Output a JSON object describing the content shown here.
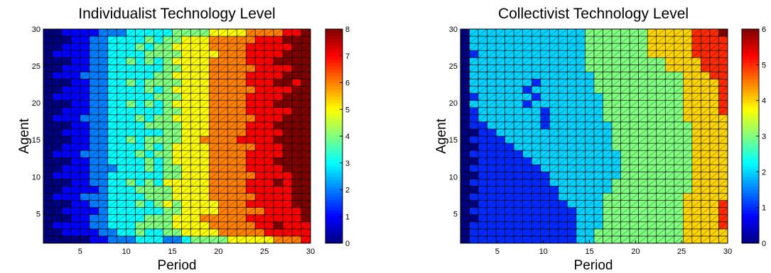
{
  "chart_data": [
    {
      "type": "heatmap",
      "title": "Individualist Technology Level",
      "xlabel": "Period",
      "ylabel": "Agent",
      "xlim": [
        1,
        30
      ],
      "ylim": [
        1,
        30
      ],
      "xticks": [
        5,
        10,
        15,
        20,
        25,
        30
      ],
      "yticks": [
        5,
        10,
        15,
        20,
        25,
        30
      ],
      "colorbar": {
        "min": 0,
        "max": 8,
        "ticks": [
          0,
          1,
          2,
          3,
          4,
          5,
          6,
          7,
          8
        ],
        "colormap": "jet"
      },
      "rows": [
        "00000112223332234444555556667",
        "00111122334334455556666677777",
        "01111223334444555566666778777",
        "00011223333444555666667777778",
        "00111123333334455556666677778",
        "00011223334345455556667777788",
        "01112223333444555566666777788",
        "00111123334444555566667777788",
        "00011223343435555566667778788",
        "01111223333334455566666777788",
        "00111222333434455566667777888",
        "00011223333434555566667778888",
        "01112223334344555566667777888",
        "00111223333434555566666777888",
        "00011223343444455666677778888",
        "00111223333334455566667777888",
        "00011223333444455566667778888",
        "01112223334344555566666777888",
        "00111223333334455566667777788",
        "00011223343434555566667778888",
        "01111223333344455566667777888",
        "00111223333434555566666777788",
        "00011223343444455566667778878",
        "01112223333344555566667777888",
        "00111223333334455566666777788",
        "00011223343434555566667778888",
        "01111223333444455556667777888",
        "00111223334344555566667777788",
        "00011223333434455566666777888",
        "00111122233333444455556666778"
      ]
    },
    {
      "type": "heatmap",
      "title": "Collectivist Technology Level",
      "xlabel": "Period",
      "ylabel": "Agent",
      "xlim": [
        1,
        30
      ],
      "ylim": [
        1,
        30
      ],
      "xticks": [
        5,
        10,
        15,
        20,
        25,
        30
      ],
      "yticks": [
        5,
        10,
        15,
        20,
        25,
        30
      ],
      "colorbar": {
        "min": 0,
        "max": 6,
        "ticks": [
          0,
          1,
          2,
          3,
          4,
          5,
          6
        ],
        "colormap": "jet"
      },
      "rows": [
        "011111111111122333333333344444",
        "011111111111122333333333344444",
        "011111111111122233333333344445",
        "001111111111122233333333344445",
        "011111111111122233333333344445",
        "001111111111222233333333344445",
        "011111111112222233333333344444",
        "001111111112222223333333334444",
        "011111111122222223333333334444",
        "001111111122222222333333334444",
        "011111111222222222333333334444",
        "001111112222222222333333334444",
        "011111122222222222333333334444",
        "001111222222222223333333334444",
        "011112222222222223333333334444",
        "001122222222222223333333334444",
        "011222222122222223333333334444",
        "012222222122222233333333344444",
        "012222222122222233333333344445",
        "022222212222222233333333344445",
        "012222221222222233333333344445",
        "022222212222222333333333344445",
        "022222221222222333333333344445",
        "022222222222222333333333344455",
        "022222222222223333333334444555",
        "022222222222223333333334444555",
        "012222222222223333333444445555",
        "022222222222223333333444445555",
        "022222222222223333333444445555",
        "022222222222223333333444445556"
      ]
    }
  ]
}
